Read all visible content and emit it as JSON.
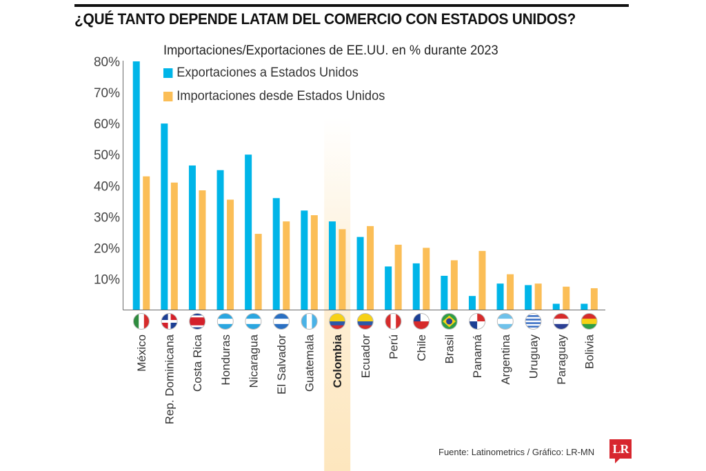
{
  "header": {
    "title": "¿QUÉ TANTO DEPENDE LATAM DEL COMERCIO CON ESTADOS UNIDOS?"
  },
  "footer": {
    "source": "Fuente: Latinometrics / Gráfico: LR-MN",
    "logo_text": "LR"
  },
  "colors": {
    "exports": "#00b5e8",
    "imports": "#fbbe57",
    "highlight": "#fde6bd",
    "axis": "#666666"
  },
  "chart_data": {
    "type": "bar",
    "title": "Importaciones/Exportaciones de EE.UU. en % durante 2023",
    "xlabel": "",
    "ylabel": "",
    "ylim": [
      0,
      80
    ],
    "yticks": [
      10,
      20,
      30,
      40,
      50,
      60,
      70,
      80
    ],
    "ytick_labels": [
      "10%",
      "20%",
      "30%",
      "40%",
      "50%",
      "60%",
      "70%",
      "80%"
    ],
    "grid": false,
    "legend_position": "top",
    "highlighted_category": "Colombia",
    "categories": [
      "México",
      "Rep. Dominicana",
      "Costa Rica",
      "Honduras",
      "Nicaragua",
      "El Salvador",
      "Guatemala",
      "Colombia",
      "Ecuador",
      "Perú",
      "Chile",
      "Brasil",
      "Panamá",
      "Argentina",
      "Uruguay",
      "Paraguay",
      "Bolivia"
    ],
    "flags": [
      "mexico-flag",
      "dominican-republic-flag",
      "costa-rica-flag",
      "honduras-flag",
      "nicaragua-flag",
      "el-salvador-flag",
      "guatemala-flag",
      "colombia-flag",
      "ecuador-flag",
      "peru-flag",
      "chile-flag",
      "brazil-flag",
      "panama-flag",
      "argentina-flag",
      "uruguay-flag",
      "paraguay-flag",
      "bolivia-flag"
    ],
    "series": [
      {
        "name": "Exportaciones a Estados Unidos",
        "values": [
          80,
          60,
          46.5,
          45,
          50,
          36,
          32,
          28.5,
          23.5,
          14,
          15,
          11,
          4.5,
          8.5,
          8,
          2,
          2
        ]
      },
      {
        "name": "Importaciones desde Estados Unidos",
        "values": [
          43,
          41,
          38.5,
          35.5,
          24.5,
          28.5,
          30.5,
          26,
          27,
          21,
          20,
          16,
          19,
          11.5,
          8.5,
          7.5,
          7
        ]
      }
    ]
  }
}
